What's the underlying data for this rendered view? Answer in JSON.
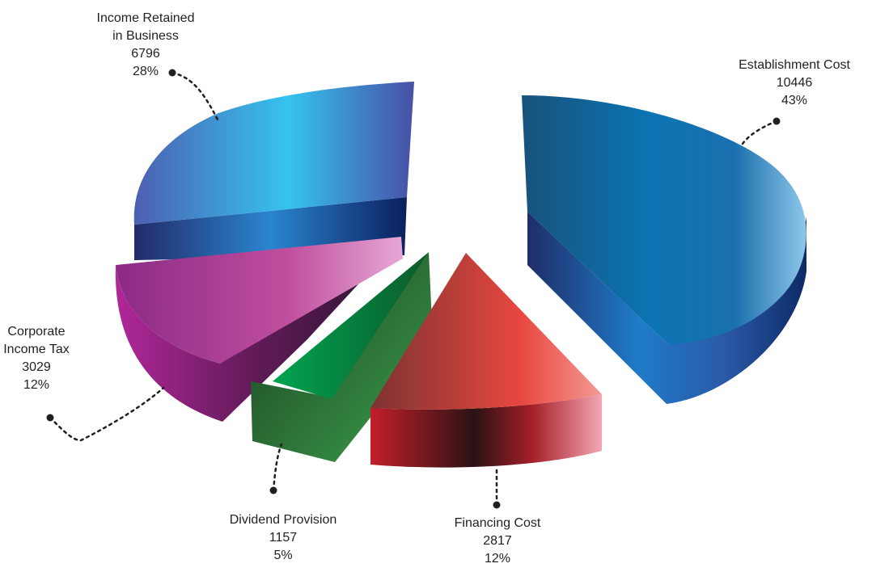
{
  "chart_data": {
    "type": "pie",
    "title": "",
    "slices": [
      {
        "key": "establishment",
        "label": "Establishment Cost",
        "value": 10446,
        "percent": "43%",
        "color": "#0e6fa6"
      },
      {
        "key": "financing",
        "label": "Financing Cost",
        "value": 2817,
        "percent": "12%",
        "color": "#c0392b"
      },
      {
        "key": "dividend",
        "label": "Dividend Provision",
        "value": 1157,
        "percent": "5%",
        "color": "#1f8a3c"
      },
      {
        "key": "corporate",
        "label": "Corporate Income Tax",
        "value": 3029,
        "percent": "12%",
        "color": "#a22a8c"
      },
      {
        "key": "retained",
        "label": "Income Retained in Business",
        "value": 6796,
        "percent": "28%",
        "color": "#2f8fd6"
      }
    ],
    "style": "3d-exploded",
    "legend": "none"
  },
  "labels": {
    "establishment": {
      "line1": "Establishment Cost",
      "value": "10446",
      "percent": "43%"
    },
    "financing": {
      "line1": "Financing Cost",
      "value": "2817",
      "percent": "12%"
    },
    "dividend": {
      "line1": "Dividend Provision",
      "value": "1157",
      "percent": "5%"
    },
    "corporate": {
      "line1": "Corporate",
      "line2": "Income Tax",
      "value": "3029",
      "percent": "12%"
    },
    "retained": {
      "line1": "Income Retained",
      "line2": "in Business",
      "value": "6796",
      "percent": "28%"
    }
  }
}
